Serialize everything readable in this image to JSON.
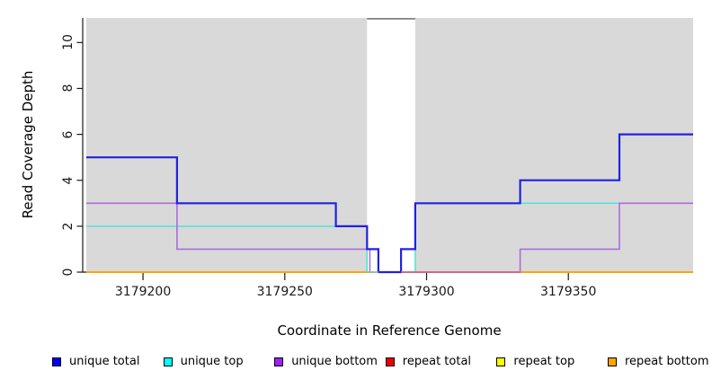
{
  "chart_data": {
    "type": "line",
    "subtype": "step",
    "title": "",
    "xlabel": "Coordinate in Reference Genome",
    "ylabel": "Read Coverage Depth",
    "xlim": [
      3179180,
      3179394
    ],
    "ylim": [
      0,
      11.07
    ],
    "plot_background": "#d9d9d9",
    "axis_color": "#1a1a1a",
    "grid": false,
    "xticks": {
      "values": [
        3179200,
        3179250,
        3179300,
        3179350
      ],
      "labels": [
        "3179200",
        "3179250",
        "3179300",
        "3179350"
      ]
    },
    "yticks": {
      "values": [
        0,
        2,
        4,
        6,
        8,
        10
      ],
      "labels": [
        "0",
        "2",
        "4",
        "6",
        "8",
        "10"
      ]
    },
    "gap_region": {
      "x0": 3179279,
      "x1": 3179296,
      "fill": "#ffffff",
      "top_border_color": "#808080"
    },
    "series": [
      {
        "name": "repeat total",
        "color": "#e00000",
        "width": 1.4,
        "points": [
          [
            3179180,
            0
          ],
          [
            3179394,
            0
          ]
        ]
      },
      {
        "name": "repeat top",
        "color": "#ffff00",
        "width": 1.4,
        "points": [
          [
            3179180,
            0
          ],
          [
            3179394,
            0
          ]
        ]
      },
      {
        "name": "repeat bottom",
        "color": "#ffa500",
        "width": 1.7,
        "points": [
          [
            3179180,
            0
          ],
          [
            3179394,
            0
          ]
        ]
      },
      {
        "name": "unique top",
        "color": "#45e2dc",
        "width": 1.4,
        "points": [
          [
            3179180,
            2
          ],
          [
            3179279,
            2
          ],
          [
            3179279,
            0
          ],
          [
            3179296,
            0
          ],
          [
            3179296,
            3
          ],
          [
            3179394,
            3
          ]
        ]
      },
      {
        "name": "unique bottom",
        "color": "#ac6cdc",
        "width": 1.6,
        "points": [
          [
            3179180,
            3
          ],
          [
            3179212,
            3
          ],
          [
            3179212,
            1
          ],
          [
            3179280,
            1
          ],
          [
            3179280,
            0
          ],
          [
            3179333,
            0
          ],
          [
            3179333,
            1
          ],
          [
            3179368,
            1
          ],
          [
            3179368,
            3
          ],
          [
            3179394,
            3
          ]
        ]
      },
      {
        "name": "unique total",
        "color": "#2222dc",
        "width": 2.2,
        "points": [
          [
            3179180,
            5
          ],
          [
            3179212,
            5
          ],
          [
            3179212,
            3
          ],
          [
            3179268,
            3
          ],
          [
            3179268,
            2
          ],
          [
            3179279,
            2
          ],
          [
            3179279,
            1
          ],
          [
            3179283,
            1
          ],
          [
            3179283,
            0
          ],
          [
            3179291,
            0
          ],
          [
            3179291,
            1
          ],
          [
            3179296,
            1
          ],
          [
            3179296,
            3
          ],
          [
            3179333,
            3
          ],
          [
            3179333,
            4
          ],
          [
            3179368,
            4
          ],
          [
            3179368,
            6
          ],
          [
            3179394,
            6
          ]
        ]
      }
    ],
    "overlays": [
      {
        "y": 0,
        "x0": 3179279,
        "x1": 3179283,
        "color": "#8fd08f",
        "width": 1.5
      },
      {
        "y": 0,
        "x0": 3179291,
        "x1": 3179333,
        "color": "#d5608c",
        "width": 1.5
      }
    ],
    "legend": {
      "position": "bottom",
      "swatch_border": "#000000",
      "items": [
        {
          "label": "unique total",
          "color": "#0000ff"
        },
        {
          "label": "unique top",
          "color": "#00ffff"
        },
        {
          "label": "unique bottom",
          "color": "#a020f0"
        },
        {
          "label": "repeat total",
          "color": "#ee0000"
        },
        {
          "label": "repeat top",
          "color": "#ffff00"
        },
        {
          "label": "repeat bottom",
          "color": "#ffa500"
        }
      ]
    }
  }
}
